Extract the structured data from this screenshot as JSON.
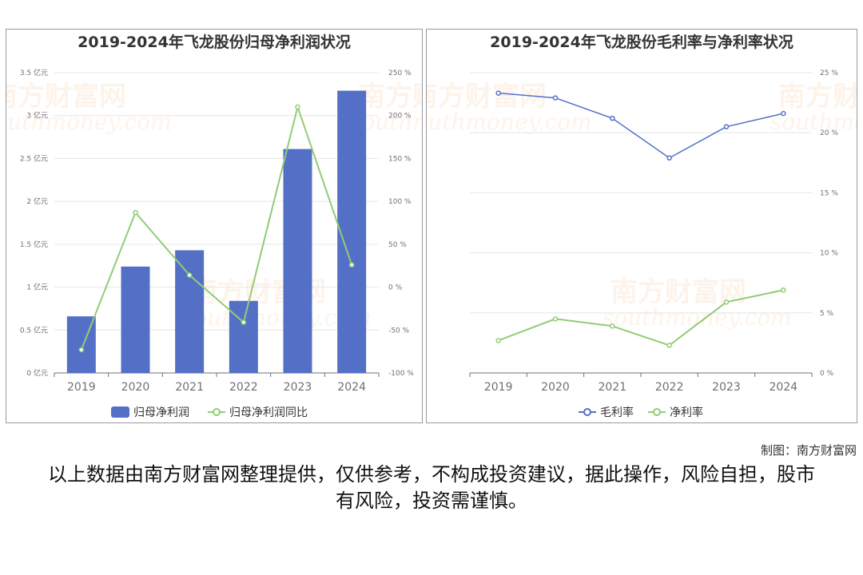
{
  "colors": {
    "bar": "#5470c6",
    "line_green": "#91cc75",
    "line_blue": "#5470c6",
    "grid": "#e6e6e6",
    "axis_text": "#6e7079",
    "watermark": "#f0b27a"
  },
  "watermark": {
    "name": "南方财富网",
    "url": "southmoney.com"
  },
  "chart_data": [
    {
      "type": "bar",
      "title": "2019-2024年飞龙股份归母净利润状况",
      "categories": [
        "2019",
        "2020",
        "2021",
        "2022",
        "2023",
        "2024"
      ],
      "y_left": {
        "unit": "亿元",
        "ylim": [
          0,
          3.5
        ],
        "ticks": [
          "0 亿元",
          "0.5 亿元",
          "1 亿元",
          "1.5 亿元",
          "2 亿元",
          "2.5 亿元",
          "3 亿元",
          "3.5 亿元"
        ]
      },
      "y_right": {
        "unit": "%",
        "ylim": [
          -100,
          250
        ],
        "ticks": [
          "-100 %",
          "-50 %",
          "0 %",
          "50 %",
          "100 %",
          "150 %",
          "200 %",
          "250 %"
        ]
      },
      "series": [
        {
          "name": "归母净利润",
          "kind": "bar",
          "axis": "left",
          "values": [
            0.66,
            1.24,
            1.43,
            0.84,
            2.61,
            3.29
          ]
        },
        {
          "name": "归母净利润同比",
          "kind": "line",
          "axis": "right",
          "values": [
            -73.0,
            87.0,
            14.0,
            -41.0,
            210.0,
            26.0
          ]
        }
      ],
      "grid": true,
      "legend": "bottom-center"
    },
    {
      "type": "line",
      "title": "2019-2024年飞龙股份毛利率与净利率状况",
      "categories": [
        "2019",
        "2020",
        "2021",
        "2022",
        "2023",
        "2024"
      ],
      "y_right": {
        "unit": "%",
        "ylim": [
          0,
          25
        ],
        "ticks": [
          "0 %",
          "5 %",
          "10 %",
          "15 %",
          "20 %",
          "25 %"
        ]
      },
      "series": [
        {
          "name": "毛利率",
          "kind": "line",
          "values": [
            23.3,
            22.9,
            21.2,
            17.9,
            20.5,
            21.6
          ]
        },
        {
          "name": "净利率",
          "kind": "line",
          "values": [
            2.7,
            4.5,
            3.9,
            2.3,
            5.9,
            6.9
          ]
        }
      ],
      "grid": true,
      "legend": "bottom-center"
    }
  ],
  "footer": {
    "credit": "制图：南方财富网",
    "disclaimer": "以上数据由南方财富网整理提供，仅供参考，不构成投资建议，据此操作，风险自担，股市有风险，投资需谨慎。"
  }
}
